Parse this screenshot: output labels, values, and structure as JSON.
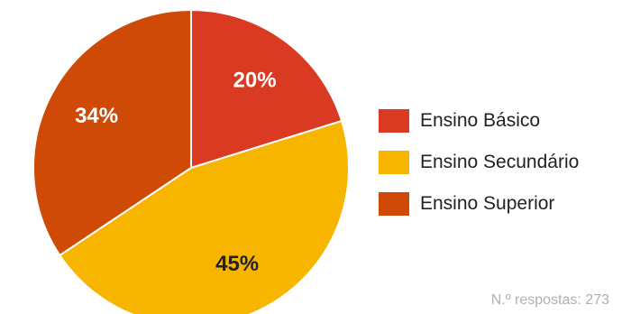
{
  "chart_data": {
    "type": "pie",
    "categories": [
      "Ensino Básico",
      "Ensino Secundário",
      "Ensino Superior"
    ],
    "values": [
      20,
      45,
      34
    ],
    "labels": [
      "20%",
      "45%",
      "34%"
    ],
    "colors": [
      "#db3a22",
      "#f7b500",
      "#cf4a06"
    ],
    "label_colors": [
      "#ffffff",
      "#222222",
      "#ffffff"
    ],
    "legend_position": "right"
  },
  "footnote": "N.º respostas: 273"
}
